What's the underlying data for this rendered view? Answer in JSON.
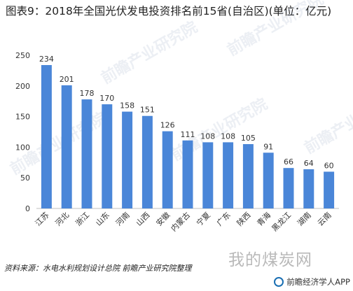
{
  "page": {
    "title": "图表9：2018年全国光伏发电投资排名前15省(自治区)(单位：亿元)",
    "source": "资料来源：水电水利规划设计总院 前瞻产业研究院整理",
    "watermark_text": "前瞻产业研究院",
    "overlay_logo": "我的煤炭网",
    "brand": "前瞻经济学人APP"
  },
  "colors": {
    "bar": "#4a86d8",
    "axis": "#bfbfbf",
    "grid": "#e6e6e6",
    "text": "#333333"
  },
  "chart_data": {
    "type": "bar",
    "categories": [
      "江苏",
      "河北",
      "浙江",
      "山东",
      "河南",
      "山西",
      "安徽",
      "内蒙古",
      "宁夏",
      "广东",
      "陕西",
      "青海",
      "黑龙江",
      "湖南",
      "云南"
    ],
    "values": [
      234,
      201,
      178,
      170,
      158,
      151,
      126,
      111,
      108,
      108,
      105,
      91,
      66,
      64,
      60
    ],
    "ylim": [
      0,
      250
    ],
    "yticks": [
      0,
      50,
      100,
      150,
      200,
      250
    ],
    "grid": false,
    "data_labels": true
  }
}
